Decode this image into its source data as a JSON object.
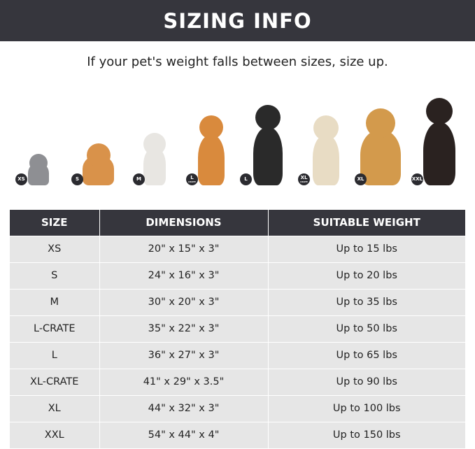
{
  "title": "SIZING INFO",
  "subtitle": "If your pet's weight falls between sizes, size up.",
  "pets": [
    {
      "badge": "XS",
      "badge_sub": "",
      "animal": "cat",
      "color": "#8e8f93"
    },
    {
      "badge": "S",
      "badge_sub": "",
      "animal": "pomeranian",
      "color": "#d9924a"
    },
    {
      "badge": "M",
      "badge_sub": "",
      "animal": "french-bulldog",
      "color": "#e8e6e2"
    },
    {
      "badge": "L",
      "badge_sub": "CRATE",
      "animal": "shiba-inu",
      "color": "#d98a3d"
    },
    {
      "badge": "L",
      "badge_sub": "",
      "animal": "border-collie",
      "color": "#2a2a2a"
    },
    {
      "badge": "XL",
      "badge_sub": "CRATE",
      "animal": "labrador",
      "color": "#e8dcc4"
    },
    {
      "badge": "XL",
      "badge_sub": "",
      "animal": "golden-retriever",
      "color": "#d39a4c"
    },
    {
      "badge": "XXL",
      "badge_sub": "",
      "animal": "doberman",
      "color": "#2a2220"
    }
  ],
  "table": {
    "headers": [
      "SIZE",
      "DIMENSIONS",
      "SUITABLE WEIGHT"
    ],
    "rows": [
      [
        "XS",
        "20\" x 15\" x 3\"",
        "Up to 15 lbs"
      ],
      [
        "S",
        "24\" x 16\" x 3\"",
        "Up to 20 lbs"
      ],
      [
        "M",
        "30\" x 20\" x 3\"",
        "Up to 35 lbs"
      ],
      [
        "L-CRATE",
        "35\" x 22\" x 3\"",
        "Up to 50 lbs"
      ],
      [
        "L",
        "36\" x 27\" x 3\"",
        "Up to 65 lbs"
      ],
      [
        "XL-CRATE",
        "41\" x 29\" x 3.5\"",
        "Up to 90 lbs"
      ],
      [
        "XL",
        "44\" x 32\" x 3\"",
        "Up to 100 lbs"
      ],
      [
        "XXL",
        "54\" x 44\" x 4\"",
        "Up to 150 lbs"
      ]
    ]
  },
  "colors": {
    "header": "#36363d",
    "row": "#e6e6e6"
  }
}
